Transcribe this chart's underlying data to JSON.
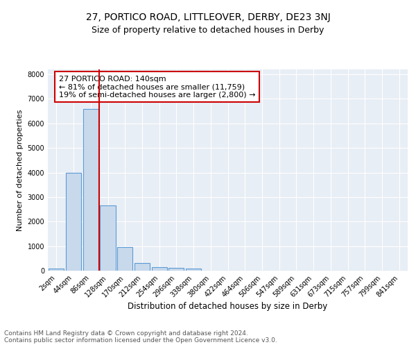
{
  "title1": "27, PORTICO ROAD, LITTLEOVER, DERBY, DE23 3NJ",
  "title2": "Size of property relative to detached houses in Derby",
  "xlabel": "Distribution of detached houses by size in Derby",
  "ylabel": "Number of detached properties",
  "bin_labels": [
    "2sqm",
    "44sqm",
    "86sqm",
    "128sqm",
    "170sqm",
    "212sqm",
    "254sqm",
    "296sqm",
    "338sqm",
    "380sqm",
    "422sqm",
    "464sqm",
    "506sqm",
    "547sqm",
    "589sqm",
    "631sqm",
    "673sqm",
    "715sqm",
    "757sqm",
    "799sqm",
    "841sqm"
  ],
  "bar_values": [
    80,
    4000,
    6600,
    2650,
    950,
    310,
    130,
    100,
    80,
    0,
    0,
    0,
    0,
    0,
    0,
    0,
    0,
    0,
    0,
    0,
    0
  ],
  "bar_color": "#c9d9ec",
  "bar_edge_color": "#5b9bd5",
  "vline_color": "#cc0000",
  "annotation_text": "27 PORTICO ROAD: 140sqm\n← 81% of detached houses are smaller (11,759)\n19% of semi-detached houses are larger (2,800) →",
  "annotation_box_color": "#ffffff",
  "annotation_box_edge": "#cc0000",
  "ylim": [
    0,
    8200
  ],
  "yticks": [
    0,
    1000,
    2000,
    3000,
    4000,
    5000,
    6000,
    7000,
    8000
  ],
  "background_color": "#e8eef5",
  "footer_text": "Contains HM Land Registry data © Crown copyright and database right 2024.\nContains public sector information licensed under the Open Government Licence v3.0.",
  "title1_fontsize": 10,
  "title2_fontsize": 9,
  "xlabel_fontsize": 8.5,
  "ylabel_fontsize": 8,
  "tick_fontsize": 7,
  "annotation_fontsize": 8,
  "footer_fontsize": 6.5
}
